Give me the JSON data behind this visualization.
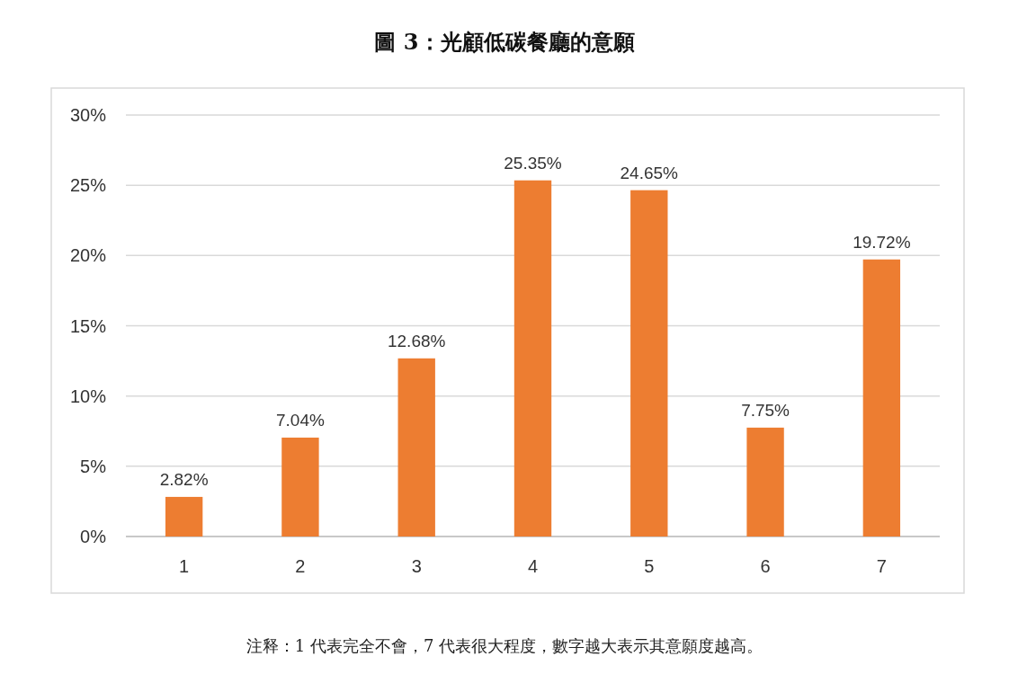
{
  "chart_data": {
    "type": "bar",
    "title": "圖 3：光顧低碳餐廳的意願",
    "categories": [
      "1",
      "2",
      "3",
      "4",
      "5",
      "6",
      "7"
    ],
    "values": [
      2.82,
      7.04,
      12.68,
      25.35,
      24.65,
      7.75,
      19.72
    ],
    "value_labels": [
      "2.82%",
      "7.04%",
      "12.68%",
      "25.35%",
      "24.65%",
      "7.75%",
      "19.72%"
    ],
    "color": "#ed7d31",
    "ylim": [
      0,
      30
    ],
    "yticks": [
      {
        "value": 0,
        "label": "0%"
      },
      {
        "value": 5,
        "label": "5%"
      },
      {
        "value": 10,
        "label": "10%"
      },
      {
        "value": 15,
        "label": "15%"
      },
      {
        "value": 20,
        "label": "20%"
      },
      {
        "value": 25,
        "label": "25%"
      },
      {
        "value": 30,
        "label": "30%"
      }
    ],
    "grid": "y",
    "annotations": [
      "注释：1 代表完全不會，7 代表很大程度，數字越大表示其意願度越高。"
    ]
  }
}
